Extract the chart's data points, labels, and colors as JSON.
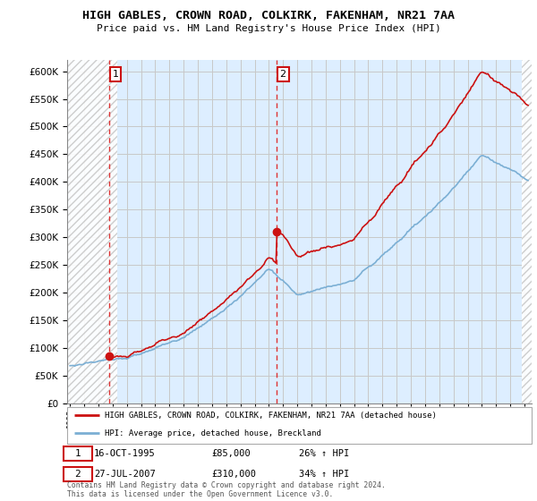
{
  "title": "HIGH GABLES, CROWN ROAD, COLKIRK, FAKENHAM, NR21 7AA",
  "subtitle": "Price paid vs. HM Land Registry's House Price Index (HPI)",
  "ytick_values": [
    0,
    50000,
    100000,
    150000,
    200000,
    250000,
    300000,
    350000,
    400000,
    450000,
    500000,
    550000,
    600000
  ],
  "xlim": [
    1992.8,
    2025.5
  ],
  "ylim": [
    0,
    620000
  ],
  "hpi_color": "#7bafd4",
  "price_color": "#cc1111",
  "vline_color": "#dd3333",
  "bg_plot_color": "#ddeeff",
  "hatch_color": "#c8c8c8",
  "grid_color": "#c8c8c8",
  "marker1_date": 1995.79,
  "marker1_price": 85000,
  "marker2_date": 2007.57,
  "marker2_price": 310000,
  "legend_label1": "HIGH GABLES, CROWN ROAD, COLKIRK, FAKENHAM, NR21 7AA (detached house)",
  "legend_label2": "HPI: Average price, detached house, Breckland",
  "note1_num": "1",
  "note1_date": "16-OCT-1995",
  "note1_price": "£85,000",
  "note1_hpi": "26% ↑ HPI",
  "note2_num": "2",
  "note2_date": "27-JUL-2007",
  "note2_price": "£310,000",
  "note2_hpi": "34% ↑ HPI",
  "copyright": "Contains HM Land Registry data © Crown copyright and database right 2024.\nThis data is licensed under the Open Government Licence v3.0."
}
